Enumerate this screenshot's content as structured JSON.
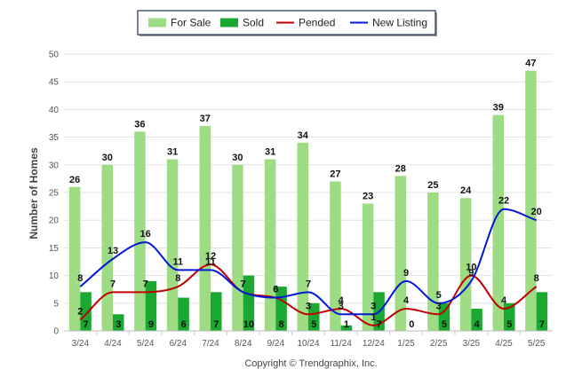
{
  "chart_data": {
    "type": "bar",
    "categories": [
      "3/24",
      "4/24",
      "5/24",
      "6/24",
      "7/24",
      "8/24",
      "9/24",
      "10/24",
      "11/24",
      "12/24",
      "1/25",
      "2/25",
      "3/25",
      "4/25",
      "5/25"
    ],
    "series": [
      {
        "name": "For Sale",
        "type": "bar",
        "color": "#9edc84",
        "values": [
          26,
          30,
          36,
          31,
          37,
          30,
          31,
          34,
          27,
          23,
          28,
          25,
          24,
          39,
          47
        ]
      },
      {
        "name": "Sold",
        "type": "bar",
        "color": "#1aa831",
        "values": [
          7,
          3,
          9,
          6,
          7,
          10,
          8,
          5,
          1,
          7,
          0,
          5,
          4,
          5,
          7
        ]
      },
      {
        "name": "Pended",
        "type": "line",
        "color": "#c00000",
        "values": [
          2,
          7,
          7,
          8,
          12,
          7,
          6,
          3,
          4,
          1,
          4,
          3,
          10,
          4,
          8
        ]
      },
      {
        "name": "New Listing",
        "type": "line",
        "color": "#0018d6",
        "values": [
          8,
          13,
          16,
          11,
          11,
          7,
          6,
          7,
          3,
          3,
          9,
          5,
          9,
          22,
          20
        ]
      }
    ],
    "xlabel": "",
    "ylabel": "Number of Homes",
    "ylim": [
      0,
      50
    ],
    "yticks": [
      0,
      5,
      10,
      15,
      20,
      25,
      30,
      35,
      40,
      45,
      50
    ],
    "grid": true,
    "legend_position": "top-center",
    "footer": "Copyright © Trendgraphix, Inc."
  }
}
